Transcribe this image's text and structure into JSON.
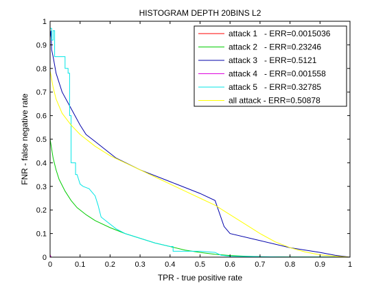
{
  "chart_data": {
    "type": "line",
    "title": "HISTOGRAM DEPTH 20BINS L2",
    "xlabel": "TPR - true positive rate",
    "ylabel": "FNR - false negative rate",
    "xlim": [
      0,
      1
    ],
    "ylim": [
      0,
      1
    ],
    "xticks": [
      0,
      0.1,
      0.2,
      0.3,
      0.4,
      0.5,
      0.6,
      0.7,
      0.8,
      0.9,
      1
    ],
    "yticks": [
      0,
      0.1,
      0.2,
      0.3,
      0.4,
      0.5,
      0.6,
      0.7,
      0.8,
      0.9,
      1
    ],
    "xtick_labels": [
      "0",
      "0.1",
      "0.2",
      "0.3",
      "0.4",
      "0.5",
      "0.6",
      "0.7",
      "0.8",
      "0.9",
      "1"
    ],
    "ytick_labels": [
      "0",
      "0.1",
      "0.2",
      "0.3",
      "0.4",
      "0.5",
      "0.6",
      "0.7",
      "0.8",
      "0.9",
      "1"
    ],
    "grid": false,
    "legend_position": "top-right",
    "series": [
      {
        "name": "attack 1   - ERR=0.0015036",
        "color": "#ff0000",
        "x": [
          0.0,
          0.001,
          0.002,
          1.0
        ],
        "y": [
          0.013,
          0.003,
          0.0,
          0.0
        ]
      },
      {
        "name": "attack 2   - ERR=0.23246",
        "color": "#00cc00",
        "x": [
          0.0,
          0.005,
          0.01,
          0.02,
          0.03,
          0.05,
          0.07,
          0.09,
          0.12,
          0.15,
          0.2,
          0.25,
          0.3,
          0.35,
          0.4,
          0.45,
          0.5,
          0.55,
          0.6,
          0.65,
          0.7,
          0.8,
          0.9,
          1.0
        ],
        "y": [
          0.5,
          0.46,
          0.42,
          0.37,
          0.33,
          0.28,
          0.24,
          0.21,
          0.18,
          0.155,
          0.125,
          0.1,
          0.08,
          0.06,
          0.045,
          0.03,
          0.02,
          0.012,
          0.007,
          0.004,
          0.002,
          0.001,
          0.0005,
          0.0
        ]
      },
      {
        "name": "attack 3   - ERR=0.5121",
        "color": "#0000aa",
        "x": [
          0.0,
          0.003,
          0.005,
          0.01,
          0.02,
          0.04,
          0.07,
          0.1,
          0.12,
          0.15,
          0.2,
          0.22,
          0.3,
          0.4,
          0.5,
          0.55,
          0.58,
          0.6,
          0.7,
          0.8,
          0.9,
          0.95,
          1.0
        ],
        "y": [
          0.93,
          0.96,
          0.88,
          0.85,
          0.78,
          0.7,
          0.63,
          0.56,
          0.52,
          0.49,
          0.44,
          0.42,
          0.37,
          0.32,
          0.27,
          0.24,
          0.13,
          0.1,
          0.07,
          0.04,
          0.02,
          0.008,
          0.0
        ]
      },
      {
        "name": "attack 4   - ERR=0.001558",
        "color": "#dd00dd",
        "x": [
          0.0,
          0.002,
          0.004,
          1.0
        ],
        "y": [
          0.01,
          0.004,
          0.0,
          0.0
        ]
      },
      {
        "name": "attack 5   - ERR=0.32785",
        "color": "#00e5e5",
        "x": [
          0.0,
          0.005,
          0.005,
          0.01,
          0.01,
          0.015,
          0.015,
          0.05,
          0.05,
          0.06,
          0.06,
          0.065,
          0.065,
          0.07,
          0.07,
          0.085,
          0.085,
          0.09,
          0.1,
          0.11,
          0.13,
          0.15,
          0.16,
          0.17,
          0.19,
          0.22,
          0.25,
          0.3,
          0.35,
          0.4,
          0.41,
          0.41,
          0.5,
          0.55,
          0.57,
          0.6,
          0.7,
          0.8,
          0.9,
          1.0
        ],
        "y": [
          0.97,
          0.97,
          0.92,
          0.92,
          0.96,
          0.96,
          0.85,
          0.85,
          0.8,
          0.8,
          0.78,
          0.78,
          0.6,
          0.6,
          0.4,
          0.4,
          0.35,
          0.35,
          0.31,
          0.3,
          0.29,
          0.26,
          0.22,
          0.17,
          0.15,
          0.12,
          0.1,
          0.08,
          0.06,
          0.045,
          0.045,
          0.025,
          0.025,
          0.02,
          0.008,
          0.004,
          0.002,
          0.001,
          0.0005,
          0.0
        ]
      },
      {
        "name": "all attack - ERR=0.50878",
        "color": "#ffff00",
        "x": [
          0.0,
          0.01,
          0.02,
          0.04,
          0.07,
          0.1,
          0.15,
          0.2,
          0.25,
          0.3,
          0.35,
          0.4,
          0.45,
          0.5,
          0.55,
          0.6,
          0.65,
          0.7,
          0.75,
          0.8,
          0.85,
          0.9,
          0.95,
          1.0
        ],
        "y": [
          0.79,
          0.72,
          0.67,
          0.61,
          0.56,
          0.52,
          0.47,
          0.43,
          0.4,
          0.37,
          0.34,
          0.31,
          0.28,
          0.25,
          0.22,
          0.18,
          0.14,
          0.1,
          0.065,
          0.04,
          0.022,
          0.01,
          0.004,
          0.0
        ]
      }
    ]
  }
}
